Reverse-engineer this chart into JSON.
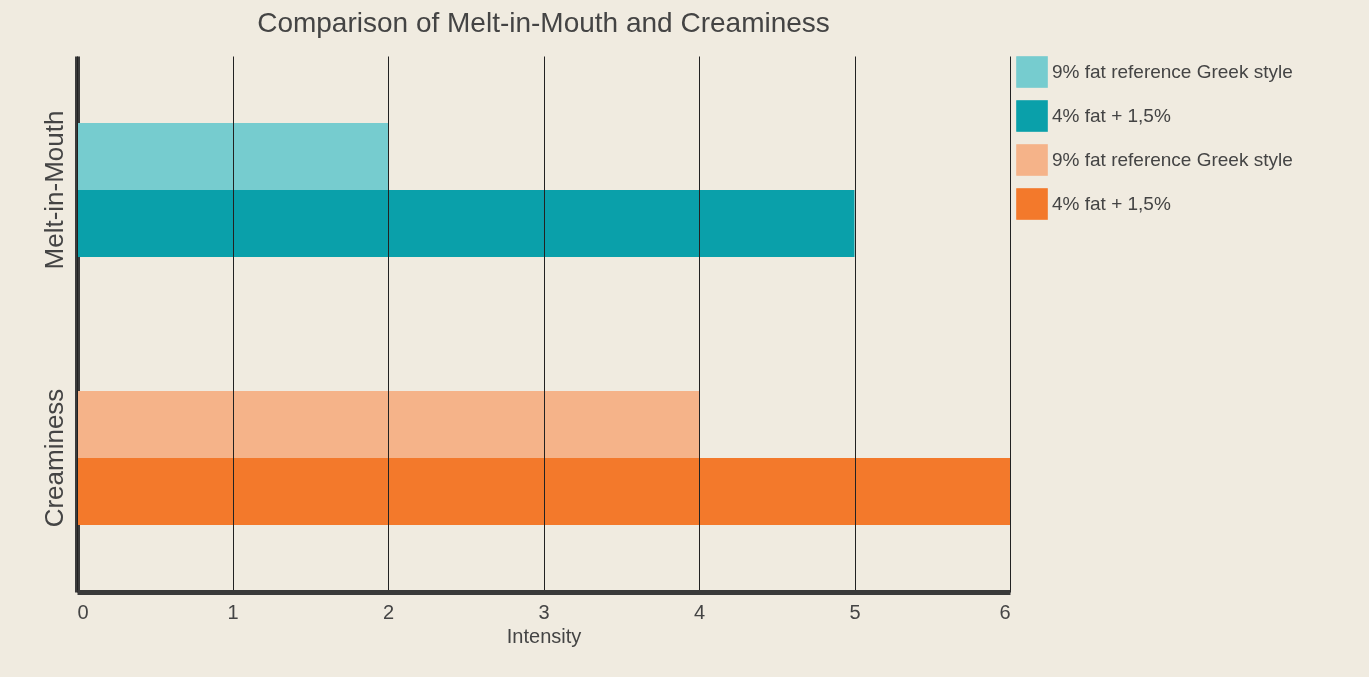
{
  "chart_data": {
    "type": "bar",
    "orientation": "horizontal",
    "title": "Comparison of Melt-in-Mouth and Creaminess",
    "xlabel": "Intensity",
    "categories": [
      "Melt-in-Mouth",
      "Creaminess"
    ],
    "series": [
      {
        "name": "9% fat reference Greek style",
        "color": "#76cccf",
        "values": [
          2,
          null
        ]
      },
      {
        "name": "4% fat + 1,5%",
        "color": "#0aa0aa",
        "values": [
          5,
          null
        ]
      },
      {
        "name": "9% fat reference Greek style",
        "color": "#f5b389",
        "values": [
          null,
          4
        ]
      },
      {
        "name": "4% fat + 1,5%",
        "color": "#f3792b",
        "values": [
          null,
          6
        ]
      }
    ],
    "xlim": [
      0,
      6
    ],
    "xticks": [
      0,
      1,
      2,
      3,
      4,
      5,
      6
    ],
    "grid": "x",
    "legend": "right"
  }
}
